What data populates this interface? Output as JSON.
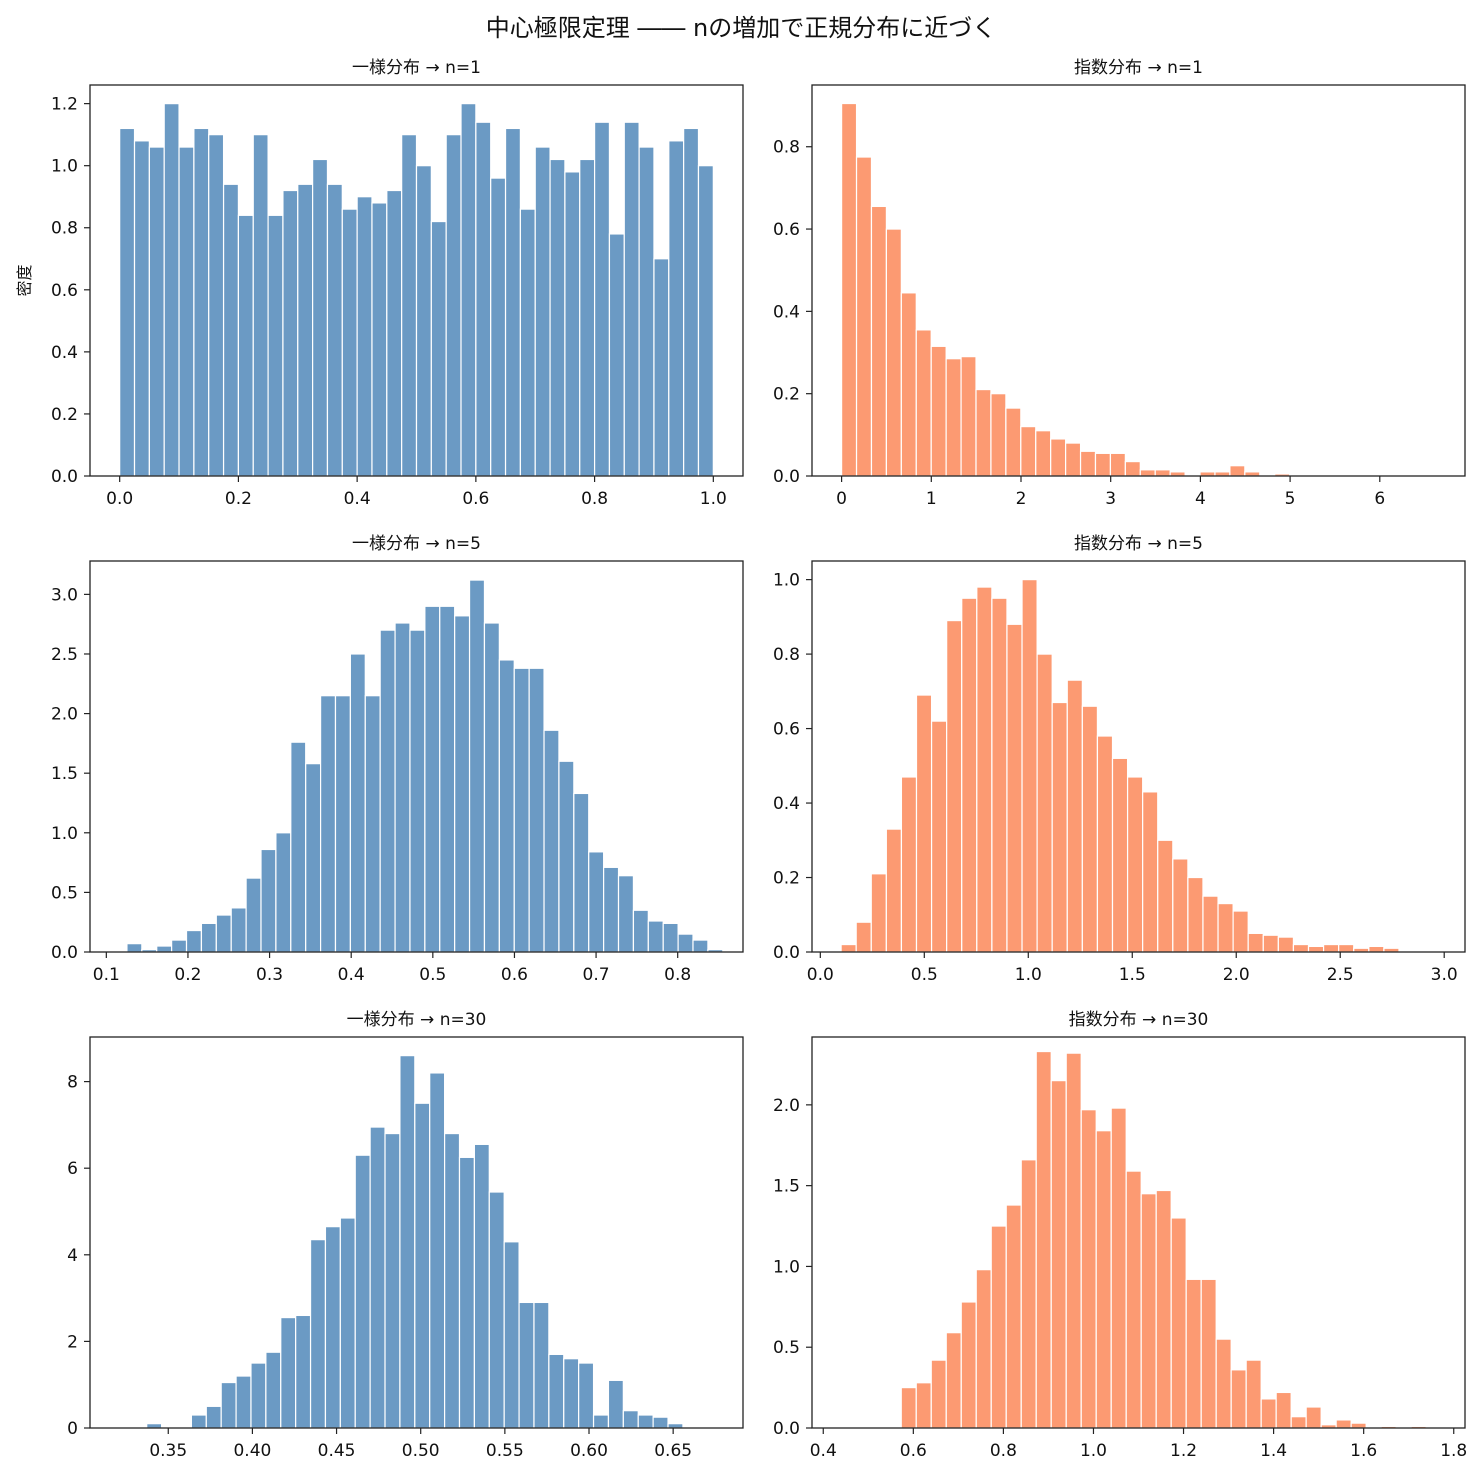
{
  "figure": {
    "title": "中心極限定理 ―― nの増加で正規分布に近づく"
  },
  "colors": {
    "uniform": "#6b9ac4",
    "exponential": "#fc9a72"
  },
  "chart_data": [
    {
      "type": "bar",
      "title": "一様分布 → n=1",
      "ylabel": "密度",
      "color": "uniform",
      "xlim": [
        -0.05,
        1.05
      ],
      "ylim": [
        0,
        1.26
      ],
      "xticks": [
        0.0,
        0.2,
        0.4,
        0.6,
        0.8,
        1.0
      ],
      "xtick_labels": [
        "0.0",
        "0.2",
        "0.4",
        "0.6",
        "0.8",
        "1.0"
      ],
      "yticks": [
        0.0,
        0.2,
        0.4,
        0.6,
        0.8,
        1.0,
        1.2
      ],
      "ytick_labels": [
        "0.0",
        "0.2",
        "0.4",
        "0.6",
        "0.8",
        "1.0",
        "1.2"
      ],
      "bin_start": 0.0,
      "bin_width": 0.025,
      "values": [
        1.12,
        1.08,
        1.06,
        1.2,
        1.06,
        1.12,
        1.1,
        0.94,
        0.84,
        1.1,
        0.84,
        0.92,
        0.94,
        1.02,
        0.94,
        0.86,
        0.9,
        0.88,
        0.92,
        1.1,
        1.0,
        0.82,
        1.1,
        1.2,
        1.14,
        0.96,
        1.12,
        0.86,
        1.06,
        1.02,
        0.98,
        1.02,
        1.14,
        0.78,
        1.14,
        1.06,
        0.7,
        1.08,
        1.12,
        1.0
      ]
    },
    {
      "type": "bar",
      "title": "指数分布 → n=1",
      "ylabel": "",
      "color": "exponential",
      "xlim": [
        -0.33,
        6.95
      ],
      "ylim": [
        0,
        0.95
      ],
      "xticks": [
        0,
        1,
        2,
        3,
        4,
        5,
        6
      ],
      "xtick_labels": [
        "0",
        "1",
        "2",
        "3",
        "4",
        "5",
        "6"
      ],
      "yticks": [
        0.0,
        0.2,
        0.4,
        0.6,
        0.8
      ],
      "ytick_labels": [
        "0.0",
        "0.2",
        "0.4",
        "0.6",
        "0.8"
      ],
      "bin_start": 0.0,
      "bin_width": 0.1665,
      "values": [
        0.905,
        0.775,
        0.655,
        0.6,
        0.445,
        0.355,
        0.315,
        0.285,
        0.29,
        0.21,
        0.2,
        0.165,
        0.12,
        0.11,
        0.09,
        0.08,
        0.06,
        0.055,
        0.055,
        0.035,
        0.015,
        0.015,
        0.01,
        0.0,
        0.01,
        0.01,
        0.025,
        0.01,
        0.0,
        0.005,
        0.0,
        0.0,
        0.0,
        0.0,
        0.0,
        0.0,
        0.0,
        0.0,
        0.0,
        0.0
      ]
    },
    {
      "type": "bar",
      "title": "一様分布 → n=5",
      "ylabel": "",
      "color": "uniform",
      "xlim": [
        0.08,
        0.88
      ],
      "ylim": [
        0,
        3.28
      ],
      "xticks": [
        0.1,
        0.2,
        0.3,
        0.4,
        0.5,
        0.6,
        0.7,
        0.8
      ],
      "xtick_labels": [
        "0.1",
        "0.2",
        "0.3",
        "0.4",
        "0.5",
        "0.6",
        "0.7",
        "0.8"
      ],
      "yticks": [
        0.0,
        0.5,
        1.0,
        1.5,
        2.0,
        2.5,
        3.0
      ],
      "ytick_labels": [
        "0.0",
        "0.5",
        "1.0",
        "1.5",
        "2.0",
        "2.5",
        "3.0"
      ],
      "bin_start": 0.107,
      "bin_width": 0.01825,
      "values": [
        0.0,
        0.07,
        0.02,
        0.05,
        0.1,
        0.18,
        0.24,
        0.31,
        0.37,
        0.62,
        0.86,
        1.0,
        1.76,
        1.58,
        2.15,
        2.15,
        2.5,
        2.15,
        2.7,
        2.76,
        2.7,
        2.9,
        2.9,
        2.82,
        3.12,
        2.76,
        2.45,
        2.38,
        2.38,
        1.86,
        1.6,
        1.33,
        0.84,
        0.71,
        0.64,
        0.35,
        0.26,
        0.24,
        0.15,
        0.1,
        0.02
      ]
    },
    {
      "type": "bar",
      "title": "指数分布 → n=5",
      "ylabel": "",
      "color": "exponential",
      "xlim": [
        -0.04,
        3.1
      ],
      "ylim": [
        0,
        1.05
      ],
      "xticks": [
        0.0,
        0.5,
        1.0,
        1.5,
        2.0,
        2.5,
        3.0
      ],
      "xtick_labels": [
        "0.0",
        "0.5",
        "1.0",
        "1.5",
        "2.0",
        "2.5",
        "3.0"
      ],
      "yticks": [
        0.0,
        0.2,
        0.4,
        0.6,
        0.8,
        1.0
      ],
      "ytick_labels": [
        "0.0",
        "0.2",
        "0.4",
        "0.6",
        "0.8",
        "1.0"
      ],
      "bin_start": 0.1,
      "bin_width": 0.0725,
      "values": [
        0.02,
        0.08,
        0.21,
        0.33,
        0.47,
        0.69,
        0.62,
        0.89,
        0.95,
        0.98,
        0.95,
        0.88,
        1.0,
        0.8,
        0.67,
        0.73,
        0.66,
        0.58,
        0.52,
        0.47,
        0.43,
        0.3,
        0.25,
        0.2,
        0.15,
        0.13,
        0.11,
        0.05,
        0.045,
        0.04,
        0.02,
        0.015,
        0.02,
        0.02,
        0.01,
        0.015,
        0.01,
        0.0,
        0.0,
        0.0,
        0.0
      ]
    },
    {
      "type": "bar",
      "title": "一様分布 → n=30",
      "ylabel": "",
      "color": "uniform",
      "xlim": [
        0.3035,
        0.6915
      ],
      "ylim": [
        0,
        9.03
      ],
      "xticks": [
        0.35,
        0.4,
        0.45,
        0.5,
        0.55,
        0.6,
        0.65
      ],
      "xtick_labels": [
        "0.35",
        "0.40",
        "0.45",
        "0.50",
        "0.55",
        "0.60",
        "0.65"
      ],
      "yticks": [
        0,
        2,
        4,
        6,
        8
      ],
      "ytick_labels": [
        "0",
        "2",
        "4",
        "6",
        "8"
      ],
      "bin_start": 0.3195,
      "bin_width": 0.00885,
      "values": [
        0.0,
        0.0,
        0.1,
        0.0,
        0.0,
        0.3,
        0.5,
        1.05,
        1.2,
        1.5,
        1.75,
        2.55,
        2.6,
        4.35,
        4.65,
        4.85,
        6.3,
        6.95,
        6.8,
        8.6,
        7.5,
        8.2,
        6.8,
        6.25,
        6.55,
        5.45,
        4.3,
        2.9,
        2.9,
        1.7,
        1.6,
        1.5,
        0.3,
        1.1,
        0.4,
        0.3,
        0.25,
        0.1,
        0.0,
        0.0
      ]
    },
    {
      "type": "bar",
      "title": "指数分布 → n=30",
      "ylabel": "",
      "color": "exponential",
      "xlim": [
        0.375,
        1.825
      ],
      "ylim": [
        0,
        2.42
      ],
      "xticks": [
        0.4,
        0.6,
        0.8,
        1.0,
        1.2,
        1.4,
        1.6,
        1.8
      ],
      "xtick_labels": [
        "0.4",
        "0.6",
        "0.8",
        "1.0",
        "1.2",
        "1.4",
        "1.6",
        "1.8"
      ],
      "yticks": [
        0.0,
        0.5,
        1.0,
        1.5,
        2.0
      ],
      "ytick_labels": [
        "0.0",
        "0.5",
        "1.0",
        "1.5",
        "2.0"
      ],
      "bin_start": 0.44,
      "bin_width": 0.0333,
      "values": [
        0.0,
        0.0,
        0.0,
        0.0,
        0.25,
        0.28,
        0.42,
        0.59,
        0.78,
        0.98,
        1.25,
        1.38,
        1.66,
        2.33,
        2.15,
        2.32,
        1.97,
        1.84,
        1.98,
        1.59,
        1.45,
        1.47,
        1.3,
        0.92,
        0.92,
        0.55,
        0.36,
        0.42,
        0.18,
        0.22,
        0.07,
        0.13,
        0.02,
        0.05,
        0.03,
        0.0,
        0.01,
        0.0,
        0.01,
        0.0
      ]
    }
  ]
}
